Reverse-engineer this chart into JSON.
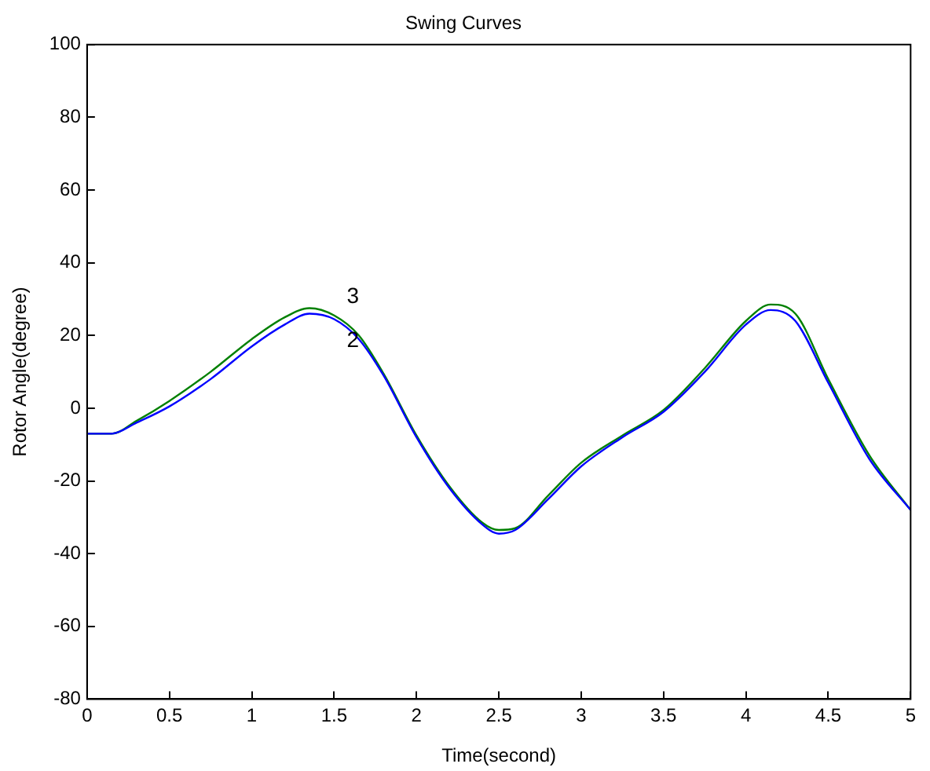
{
  "chart_data": {
    "type": "line",
    "title": "Swing Curves",
    "xlabel": "Time(second)",
    "ylabel": "Rotor Angle(degree)",
    "x": [
      0,
      0.15,
      0.3,
      0.5,
      0.75,
      1,
      1.2,
      1.35,
      1.5,
      1.65,
      1.8,
      2,
      2.2,
      2.4,
      2.5,
      2.6,
      2.8,
      3,
      3.25,
      3.5,
      3.75,
      4,
      4.15,
      4.3,
      4.5,
      4.75,
      5
    ],
    "series": [
      {
        "name": "2",
        "color": "#0000ff",
        "values": [
          -7,
          -7,
          -4,
          0.5,
          8,
          17,
          23,
          26,
          24.5,
          19,
          9,
          -8,
          -22,
          -32,
          -34.5,
          -33.5,
          -25,
          -16,
          -8,
          -1,
          10,
          23,
          27,
          24,
          7,
          -14,
          -28
        ]
      },
      {
        "name": "3",
        "color": "#008000",
        "values": [
          -7,
          -7,
          -3.5,
          2,
          10,
          19,
          25,
          27.5,
          25.5,
          20,
          9.5,
          -7.5,
          -21.5,
          -31.5,
          -33.5,
          -33,
          -24,
          -15,
          -7.5,
          -0.5,
          11,
          24,
          28.5,
          26,
          8,
          -13,
          -28
        ]
      }
    ],
    "xlim": [
      0,
      5
    ],
    "xticks": [
      0,
      0.5,
      1,
      1.5,
      2,
      2.5,
      3,
      3.5,
      4,
      4.5,
      5
    ],
    "ylim": [
      -80,
      100
    ],
    "yticks": [
      -80,
      -60,
      -40,
      -20,
      0,
      20,
      40,
      60,
      80,
      100
    ],
    "grid": false,
    "legend": false,
    "marker": "none",
    "line_style": "solid"
  }
}
